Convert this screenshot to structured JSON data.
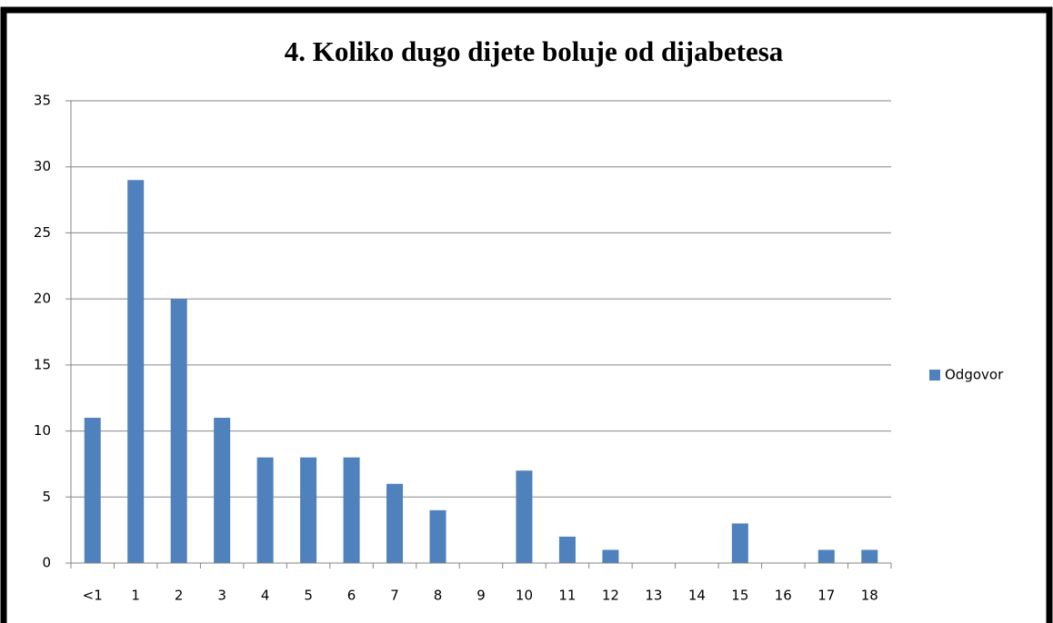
{
  "chart_data": {
    "type": "bar",
    "title": "4. Koliko dugo dijete boluje od dijabetesa",
    "categories": [
      "<1",
      "1",
      "2",
      "3",
      "4",
      "5",
      "6",
      "7",
      "8",
      "9",
      "10",
      "11",
      "12",
      "13",
      "14",
      "15",
      "16",
      "17",
      "18"
    ],
    "series": [
      {
        "name": "Odgovor",
        "color": "#4f81bd",
        "values": [
          11,
          29,
          20,
          11,
          8,
          8,
          8,
          6,
          4,
          0,
          7,
          2,
          1,
          0,
          0,
          3,
          0,
          1,
          1
        ]
      }
    ],
    "ylim": [
      0,
      35
    ],
    "yticks": [
      0,
      5,
      10,
      15,
      20,
      25,
      30,
      35
    ],
    "grid": true,
    "legend": "right"
  }
}
